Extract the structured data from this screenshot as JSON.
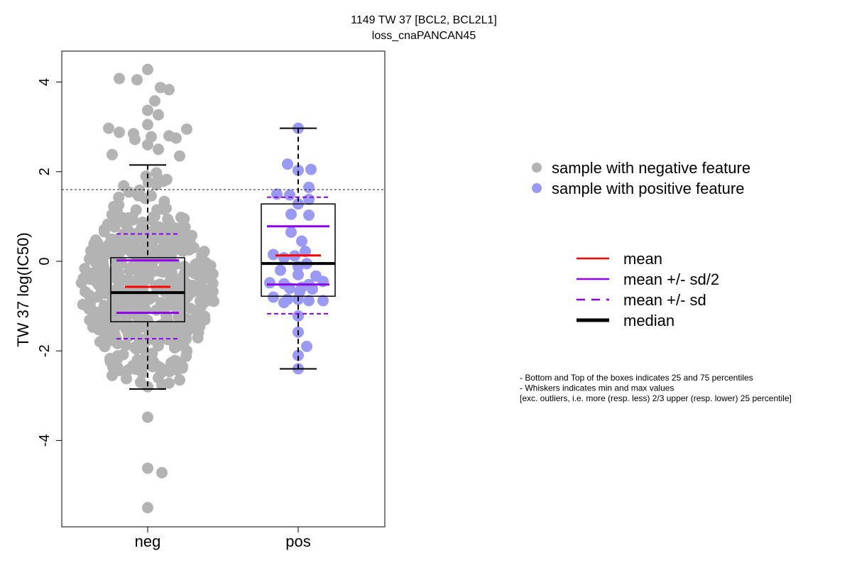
{
  "chart_data": {
    "type": "box-strip",
    "title": "1149 TW 37 [BCL2, BCL2L1]",
    "subtitle": "loss_cnaPANCAN45",
    "ylabel": "TW 37 log(IC50)",
    "xlabel": "",
    "categories": [
      "neg",
      "pos"
    ],
    "ylim": [
      -5.8,
      4.8
    ],
    "yticks": [
      -4,
      -2,
      0,
      2,
      4
    ],
    "threshold_line": 1.6,
    "colors": {
      "neg": "#b3b3b3",
      "pos": "#9a9af5",
      "mean": "#ff0000",
      "sd": "#8b00e8",
      "median": "#000000"
    },
    "groups": [
      {
        "name": "neg",
        "n": 900,
        "q1": -1.35,
        "median": -0.7,
        "q3": 0.08,
        "whisker_low": -2.85,
        "whisker_high": 2.15,
        "mean": -0.57,
        "mean_minus_half_sd": -1.15,
        "mean_plus_half_sd": 0.02,
        "mean_minus_sd": -1.73,
        "mean_plus_sd": 0.61,
        "points": [
          4.28,
          4.08,
          4.05,
          3.88,
          3.83,
          3.58,
          3.37,
          3.27,
          3.05,
          2.97,
          2.95,
          2.88,
          2.85,
          2.8,
          2.78,
          2.75,
          2.72,
          2.6,
          2.5,
          2.38,
          2.35,
          -2.55,
          -2.6,
          -2.62,
          -2.65,
          -2.7,
          -2.72,
          -2.75,
          -2.8,
          -3.48,
          -4.62,
          -4.72,
          -5.5
        ]
      },
      {
        "name": "pos",
        "n": 47,
        "q1": -0.78,
        "median": -0.05,
        "q3": 1.28,
        "whisker_low": -2.4,
        "whisker_high": 2.97,
        "mean": 0.13,
        "mean_minus_half_sd": -0.52,
        "mean_plus_half_sd": 0.78,
        "mean_minus_sd": -1.17,
        "mean_plus_sd": 1.43,
        "points": [
          2.97,
          2.17,
          2.05,
          2.03,
          1.65,
          1.5,
          1.48,
          1.38,
          1.28,
          1.05,
          1.03,
          0.65,
          0.45,
          0.22,
          0.15,
          0.12,
          0.08,
          -0.05,
          -0.12,
          -0.2,
          -0.3,
          -0.33,
          -0.45,
          -0.48,
          -0.5,
          -0.52,
          -0.58,
          -0.6,
          -0.62,
          -0.68,
          -0.8,
          -0.85,
          -0.85,
          -0.88,
          -0.88,
          -0.92,
          -1.22,
          -1.58,
          -1.9,
          -2.1,
          -2.4
        ]
      }
    ]
  },
  "legend_points": [
    {
      "label": "sample with negative feature",
      "color": "#b3b3b3"
    },
    {
      "label": "sample with positive feature",
      "color": "#9a9af5"
    }
  ],
  "legend_lines": [
    {
      "label": "mean",
      "color": "#ff0000",
      "style": "solid",
      "weight": "normal"
    },
    {
      "label": "mean +/- sd/2",
      "color": "#8b00e8",
      "style": "solid",
      "weight": "normal"
    },
    {
      "label": "mean +/- sd",
      "color": "#8b00e8",
      "style": "dashed",
      "weight": "normal"
    },
    {
      "label": "median",
      "color": "#000000",
      "style": "solid",
      "weight": "bold"
    }
  ],
  "notes": [
    "- Bottom and Top of the boxes indicates 25 and 75 percentiles",
    "- Whiskers indicates min and max values",
    "[exc. outliers, i.e. more (resp. less) 2/3 upper (resp. lower) 25 percentile]"
  ]
}
